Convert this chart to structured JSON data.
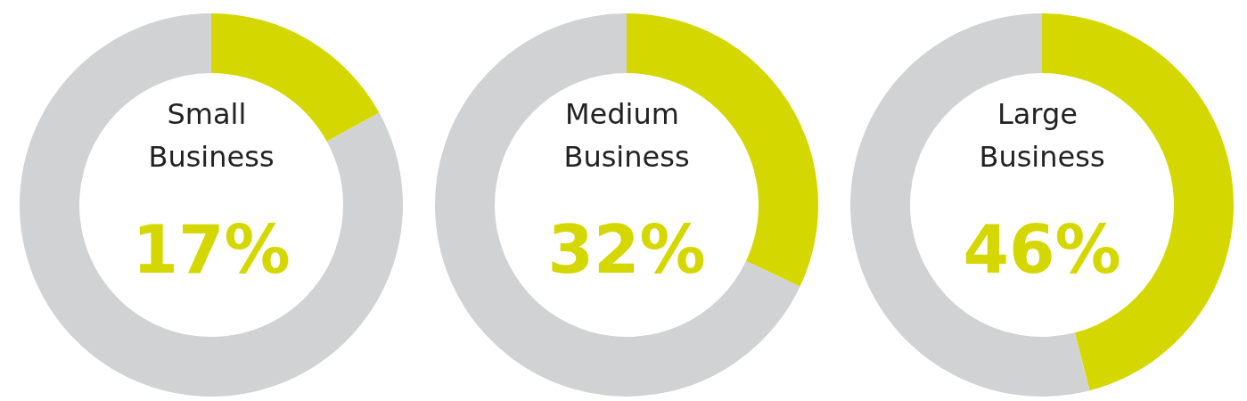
{
  "chart_data": [
    {
      "type": "donut",
      "title": "Small Business",
      "categories": [
        null,
        null
      ],
      "values": [
        17,
        83
      ],
      "colors": [
        "#d4d800",
        "#d0d2d4"
      ],
      "annotations": [
        "17%"
      ]
    },
    {
      "type": "donut",
      "title": "Medium Business",
      "categories": [
        null,
        null
      ],
      "values": [
        32,
        68
      ],
      "colors": [
        "#d4d800",
        "#d0d2d4"
      ],
      "annotations": [
        "32%"
      ]
    },
    {
      "type": "donut",
      "title": "Large Business",
      "categories": [
        null,
        null
      ],
      "values": [
        46,
        54
      ],
      "colors": [
        "#d4d800",
        "#d0d2d4"
      ],
      "annotations": [
        "46%"
      ]
    }
  ]
}
